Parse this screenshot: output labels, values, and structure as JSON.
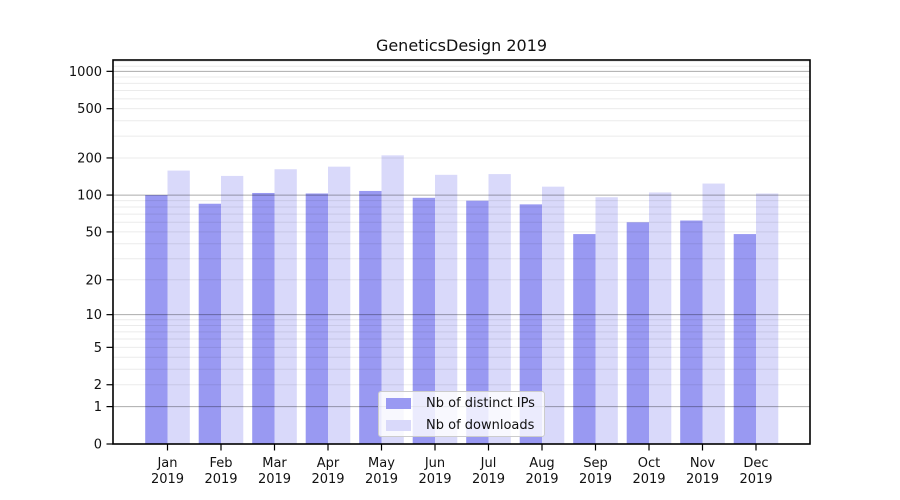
{
  "chart_data": {
    "type": "bar",
    "title": "GeneticsDesign 2019",
    "categories": [
      "Jan",
      "Feb",
      "Mar",
      "Apr",
      "May",
      "Jun",
      "Jul",
      "Aug",
      "Sep",
      "Oct",
      "Nov",
      "Dec"
    ],
    "x_tick_year": "2019",
    "series": [
      {
        "name": "Nb of distinct IPs",
        "color": "#9999f2",
        "values": [
          100,
          85,
          104,
          103,
          108,
          95,
          90,
          84,
          48,
          60,
          62,
          48
        ]
      },
      {
        "name": "Nb of downloads",
        "color": "#d9d9fa",
        "values": [
          158,
          143,
          162,
          170,
          210,
          146,
          148,
          117,
          96,
          105,
          124,
          103
        ]
      }
    ],
    "y_axis": {
      "scale": "log1p",
      "ticks": [
        0,
        1,
        2,
        5,
        10,
        20,
        50,
        100,
        200,
        500,
        1000
      ],
      "top_value": 1300
    },
    "legend": {
      "position": "inside-bottom-center"
    },
    "grid": {
      "major_lines_at": [
        1,
        10,
        100,
        1000
      ],
      "minor_lines": "2-9 per decade",
      "major_color": "rgba(0,0,0,0.33)",
      "minor_color": "rgba(0,0,0,0.08)"
    },
    "colors": {
      "background": "#ffffff",
      "axis": "#000000",
      "text": "#111111"
    }
  }
}
